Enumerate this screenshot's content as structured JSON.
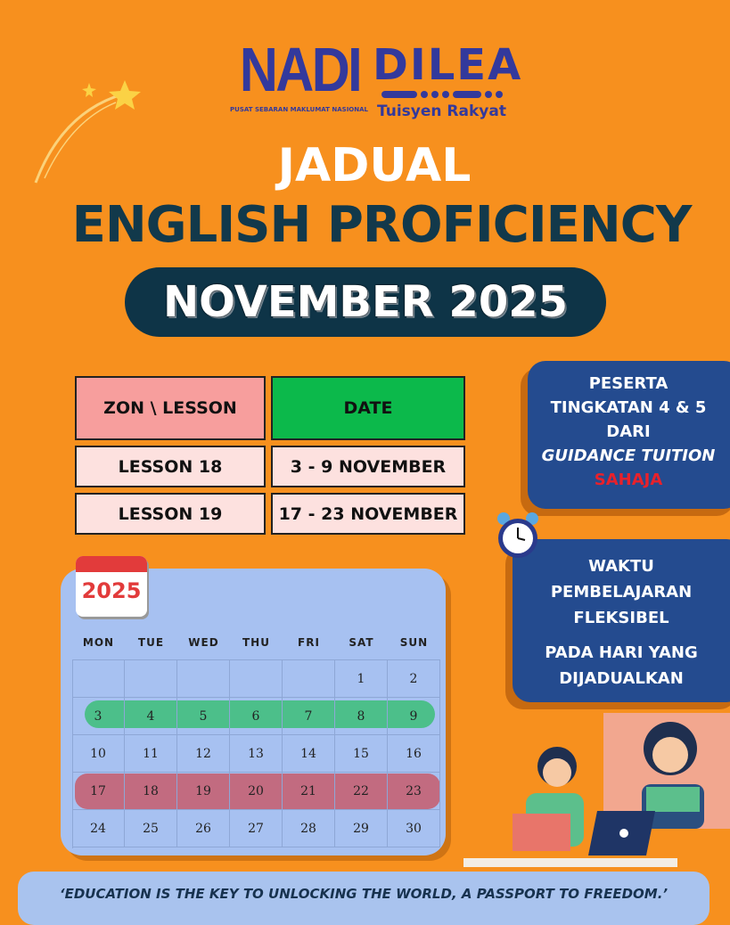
{
  "logos": {
    "nadi": "NADI",
    "nadi_sub": "PUSAT SEBARAN MAKLUMAT NASIONAL",
    "dilea": "DILEA",
    "dilea_sub": "Tuisyen Rakyat"
  },
  "title": {
    "line1": "JADUAL",
    "line2": "ENGLISH PROFICIENCY",
    "month": "NOVEMBER 2025"
  },
  "schedule": {
    "headers": [
      "ZON \\ LESSON",
      "DATE"
    ],
    "rows": [
      [
        "LESSON 18",
        "3 - 9 NOVEMBER"
      ],
      [
        "LESSON 19",
        "17 - 23 NOVEMBER"
      ]
    ],
    "colors": {
      "header1": "#f79e9d",
      "header2": "#0cb94b",
      "row": "#fde1df"
    }
  },
  "info1": {
    "line1": "PESERTA",
    "line2": "TINGKATAN 4 & 5",
    "line3": "DARI",
    "line4": "GUIDANCE TUITION",
    "line5": "SAHAJA",
    "highlight_color": "#e8212b"
  },
  "info2": {
    "line1": "WAKTU",
    "line2": "PEMBELAJARAN",
    "line3": "FLEKSIBEL",
    "line4": "PADA HARI YANG",
    "line5": "DIJADUALKAN"
  },
  "calendar": {
    "year": "2025",
    "days_of_week": [
      "MON",
      "TUE",
      "WED",
      "THU",
      "FRI",
      "SAT",
      "SUN"
    ],
    "weeks": [
      [
        "",
        "",
        "",
        "",
        "",
        "1",
        "2"
      ],
      [
        "3",
        "4",
        "5",
        "6",
        "7",
        "8",
        "9"
      ],
      [
        "10",
        "11",
        "12",
        "13",
        "14",
        "15",
        "16"
      ],
      [
        "17",
        "18",
        "19",
        "20",
        "21",
        "22",
        "23"
      ],
      [
        "24",
        "25",
        "26",
        "27",
        "28",
        "29",
        "30"
      ]
    ],
    "highlights": [
      {
        "week": 2,
        "color": "#4cbf8a"
      },
      {
        "week": 4,
        "color": "#c26b80"
      }
    ]
  },
  "quote": "‘EDUCATION IS THE KEY TO UNLOCKING THE WORLD, A PASSPORT TO FREEDOM.’",
  "icons": [
    "shooting-star-icon",
    "alarm-clock-icon",
    "calendar-icon",
    "students-illustration"
  ]
}
